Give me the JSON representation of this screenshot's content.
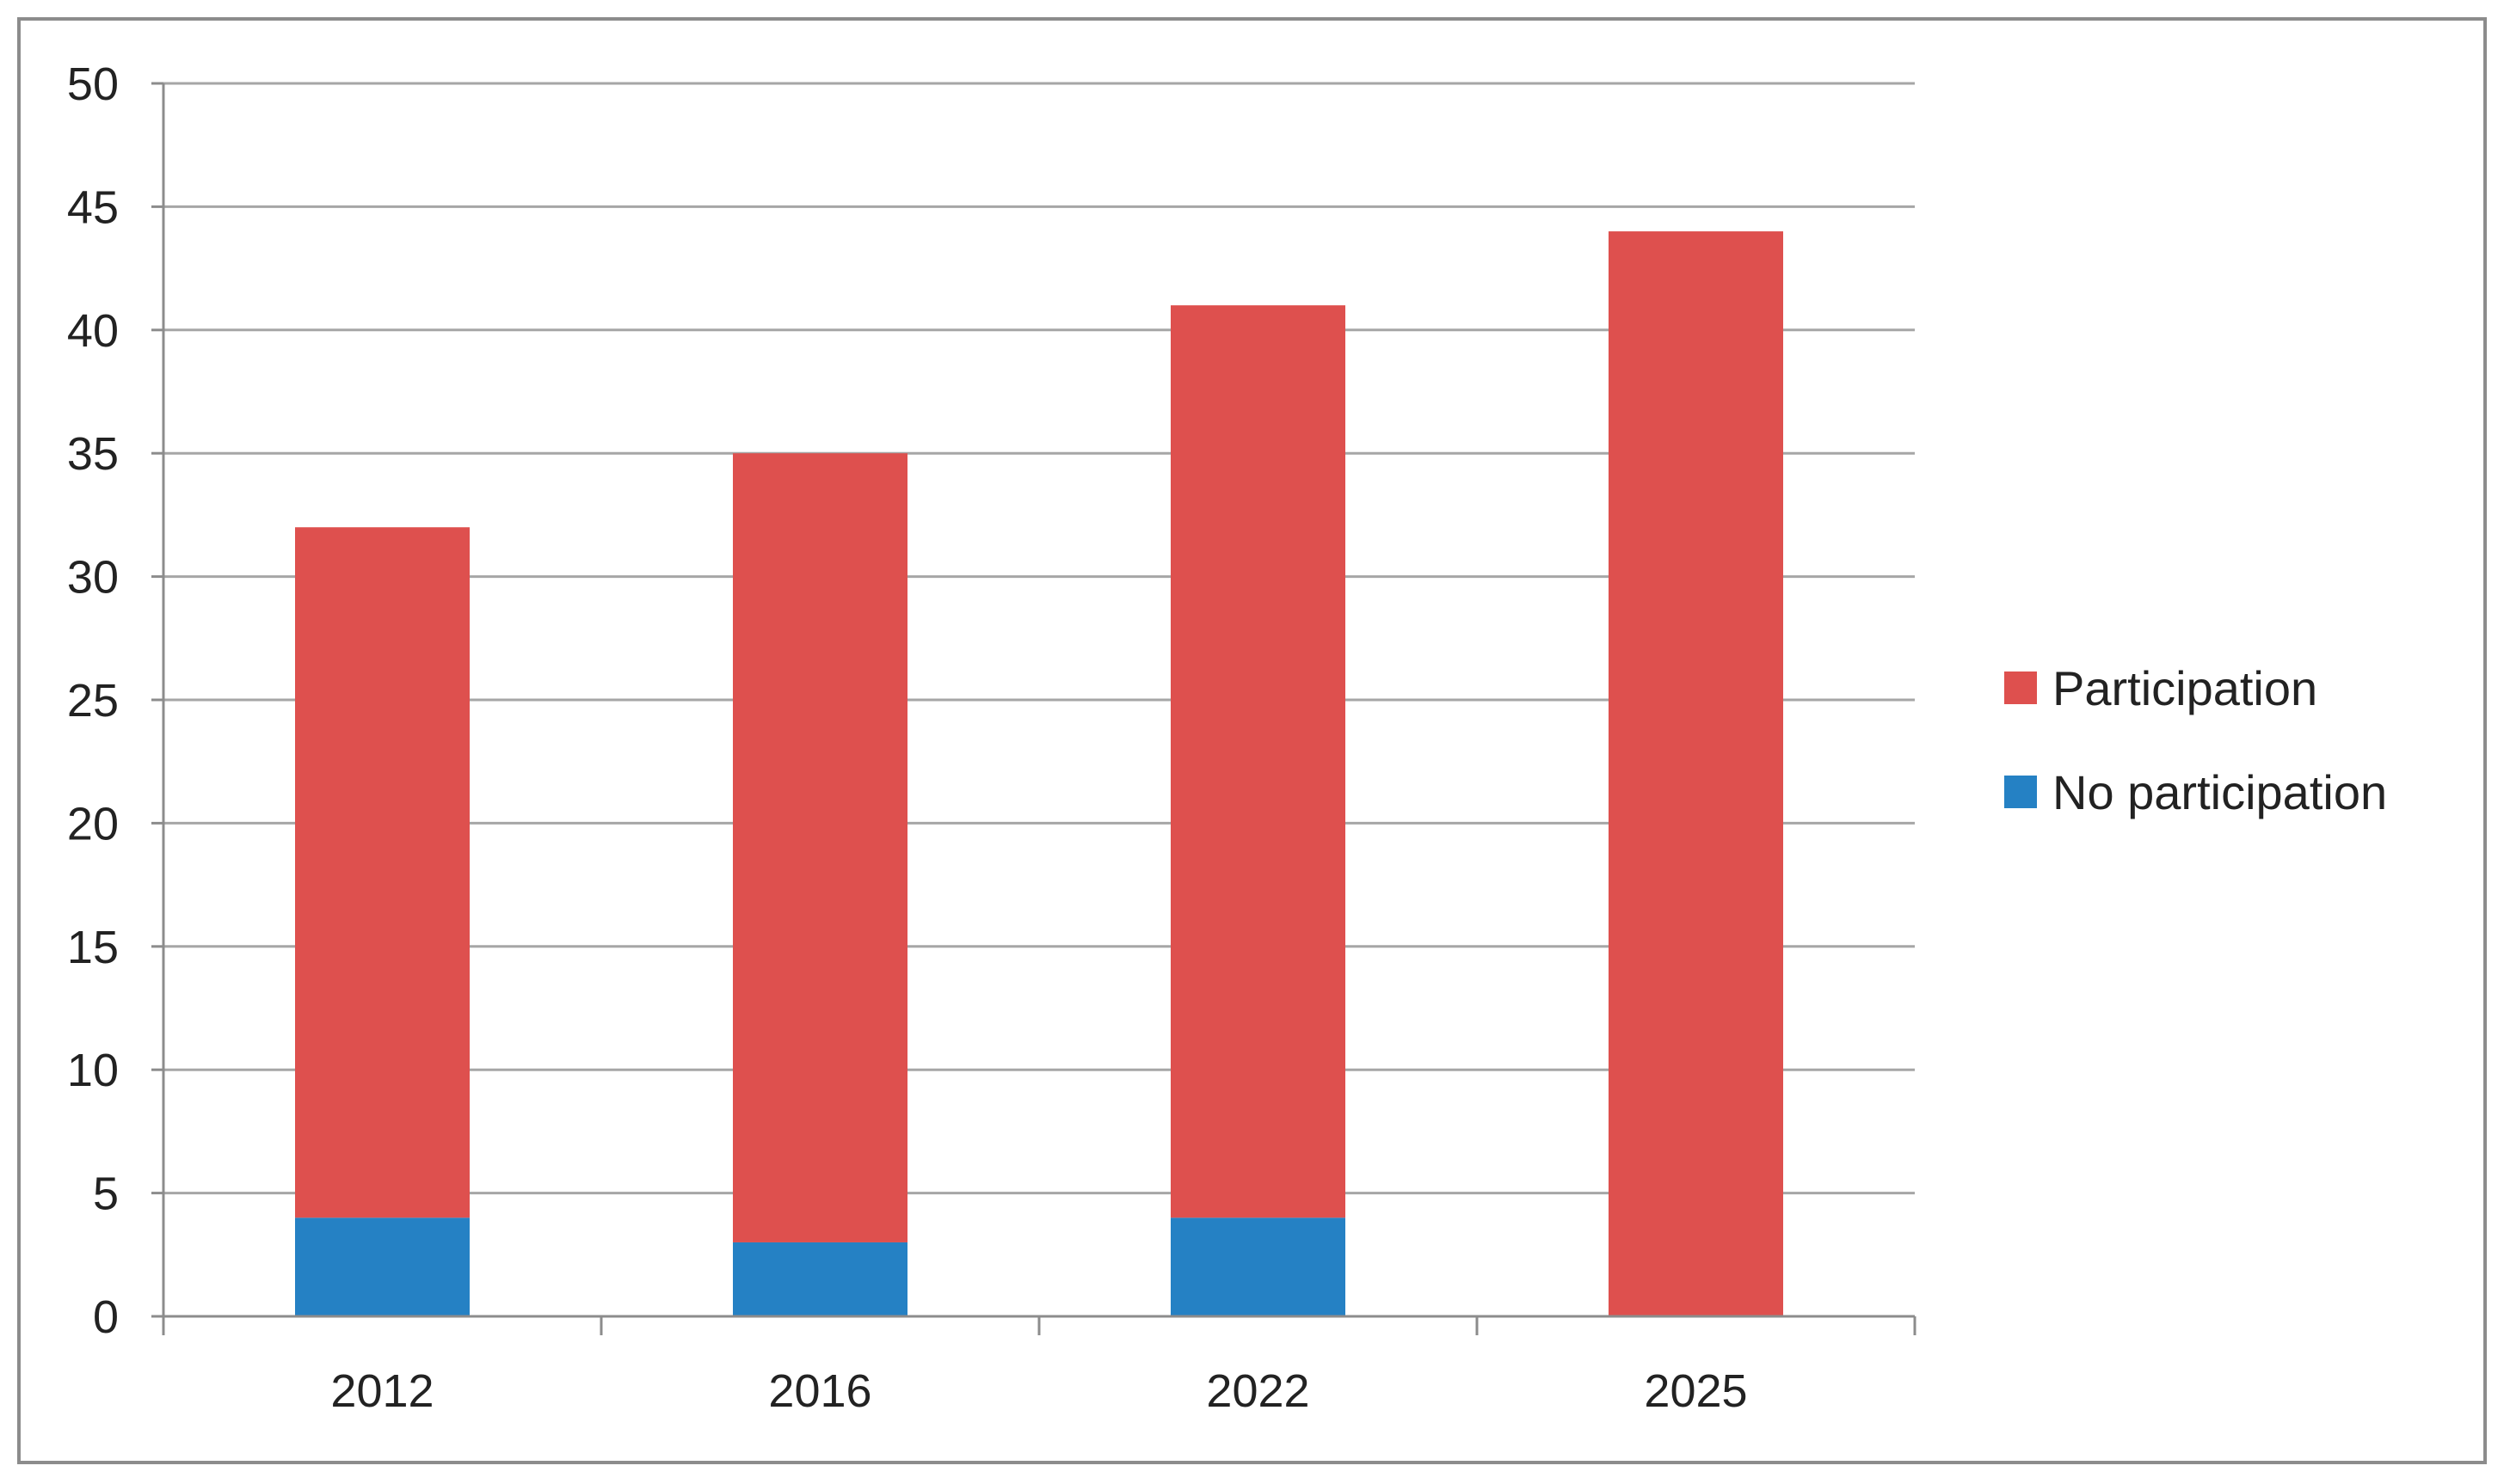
{
  "chart_data": {
    "type": "bar",
    "stacked": true,
    "categories": [
      "2012",
      "2016",
      "2022",
      "2025"
    ],
    "series": [
      {
        "name": "No participation",
        "values": [
          4,
          3,
          4,
          0
        ],
        "color": "#2581c4"
      },
      {
        "name": "Participation",
        "values": [
          28,
          32,
          37,
          44
        ],
        "color": "#de504e"
      }
    ],
    "totals": [
      32,
      35,
      41,
      44
    ],
    "title": "",
    "xlabel": "",
    "ylabel": "",
    "ylim": [
      0,
      50
    ],
    "yticks": [
      0,
      5,
      10,
      15,
      20,
      25,
      30,
      35,
      40,
      45,
      50
    ],
    "grid": true,
    "legend_position": "right",
    "legend_order": [
      "Participation",
      "No participation"
    ]
  }
}
